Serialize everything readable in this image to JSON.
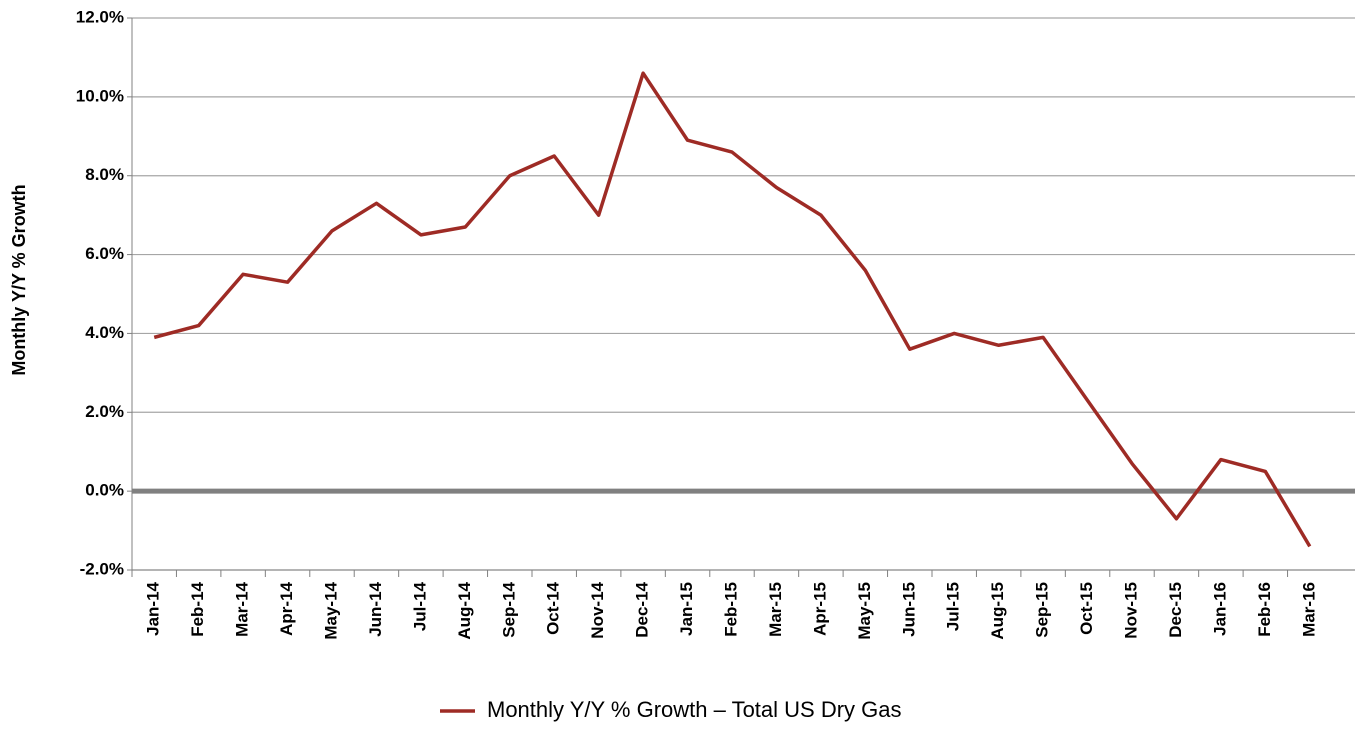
{
  "chart_data": {
    "type": "line",
    "y_label": "Monthly Y/Y % Growth",
    "categories": [
      "Jan-14",
      "Feb-14",
      "Mar-14",
      "Apr-14",
      "May-14",
      "Jun-14",
      "Jul-14",
      "Aug-14",
      "Sep-14",
      "Oct-14",
      "Nov-14",
      "Dec-14",
      "Jan-15",
      "Feb-15",
      "Mar-15",
      "Apr-15",
      "May-15",
      "Jun-15",
      "Jul-15",
      "Aug-15",
      "Sep-15",
      "Oct-15",
      "Nov-15",
      "Dec-15",
      "Jan-16",
      "Feb-16",
      "Mar-16"
    ],
    "series": [
      {
        "name": "Monthly Y/Y % Growth – Total US Dry Gas",
        "color": "#9e2b25",
        "values": [
          3.9,
          4.2,
          5.5,
          5.3,
          6.6,
          7.3,
          6.5,
          6.7,
          8.0,
          8.5,
          7.0,
          10.6,
          8.9,
          8.6,
          7.7,
          7.0,
          5.6,
          3.6,
          4.0,
          3.7,
          3.9,
          2.3,
          0.7,
          -0.7,
          0.8,
          0.5,
          -1.4
        ]
      }
    ],
    "ylim": [
      -2,
      12
    ],
    "yticks": [
      {
        "value": -2,
        "label": "-2.0%"
      },
      {
        "value": 0,
        "label": "0.0%"
      },
      {
        "value": 2,
        "label": "2.0%"
      },
      {
        "value": 4,
        "label": "4.0%"
      },
      {
        "value": 6,
        "label": "6.0%"
      },
      {
        "value": 8,
        "label": "8.0%"
      },
      {
        "value": 10,
        "label": "10.0%"
      },
      {
        "value": 12,
        "label": "12.0%"
      }
    ],
    "grid": true,
    "legend": "bottom"
  }
}
